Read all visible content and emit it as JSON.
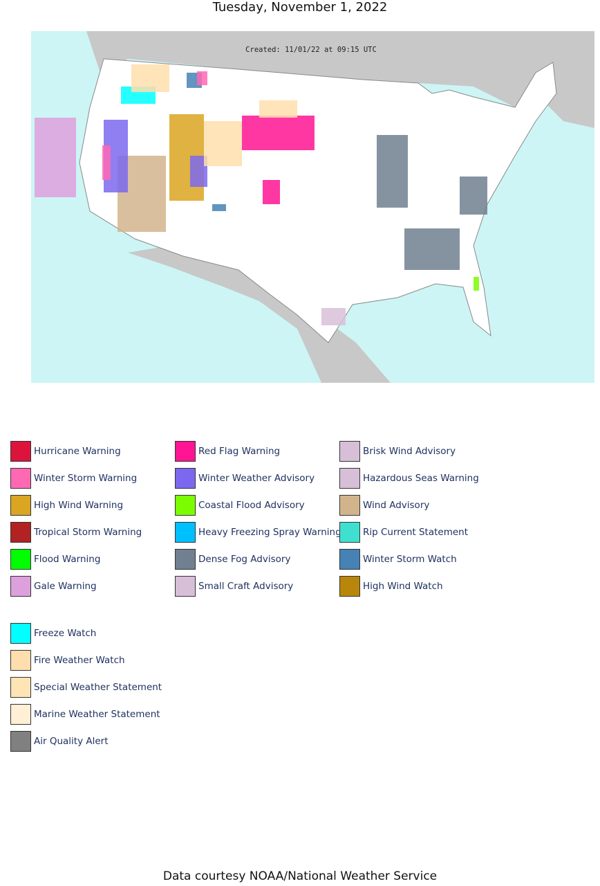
{
  "title": "Tuesday, November 1, 2022",
  "map": {
    "created": "Created: 11/01/22 at 09:15 UTC"
  },
  "legend": {
    "groups": [
      [
        {
          "label": "Hurricane Warning",
          "color": "#dc143c"
        },
        {
          "label": "Winter Storm Warning",
          "color": "#ff69b4"
        },
        {
          "label": "High Wind Warning",
          "color": "#daa520"
        },
        {
          "label": "Tropical Storm Warning",
          "color": "#b22222"
        },
        {
          "label": "Flood Warning",
          "color": "#00ff00"
        },
        {
          "label": "Gale Warning",
          "color": "#dda0dd"
        }
      ],
      [
        {
          "label": "Red Flag Warning",
          "color": "#ff1493"
        },
        {
          "label": "Winter Weather Advisory",
          "color": "#7b68ee"
        },
        {
          "label": "Coastal Flood Advisory",
          "color": "#7cfc00"
        },
        {
          "label": "Heavy Freezing Spray Warning",
          "color": "#00bfff"
        },
        {
          "label": "Dense Fog Advisory",
          "color": "#708090"
        },
        {
          "label": "Small Craft Advisory",
          "color": "#d8bfd8"
        }
      ],
      [
        {
          "label": "Brisk Wind Advisory",
          "color": "#d8bfd8"
        },
        {
          "label": "Hazardous Seas Warning",
          "color": "#d8bfd8"
        },
        {
          "label": "Wind Advisory",
          "color": "#d2b48c"
        },
        {
          "label": "Rip Current Statement",
          "color": "#40e0d0"
        },
        {
          "label": "Winter Storm Watch",
          "color": "#4682b4"
        },
        {
          "label": "High Wind Watch",
          "color": "#b8860b"
        }
      ],
      [
        {
          "label": "Freeze Watch",
          "color": "#00ffff"
        },
        {
          "label": "Fire Weather Watch",
          "color": "#ffdead"
        },
        {
          "label": "Special Weather Statement",
          "color": "#ffe4b5"
        },
        {
          "label": "Marine Weather Statement",
          "color": "#ffefd5"
        },
        {
          "label": "Air Quality Alert",
          "color": "#808080"
        }
      ]
    ]
  },
  "footer": "Data courtesy NOAA/National Weather Service"
}
